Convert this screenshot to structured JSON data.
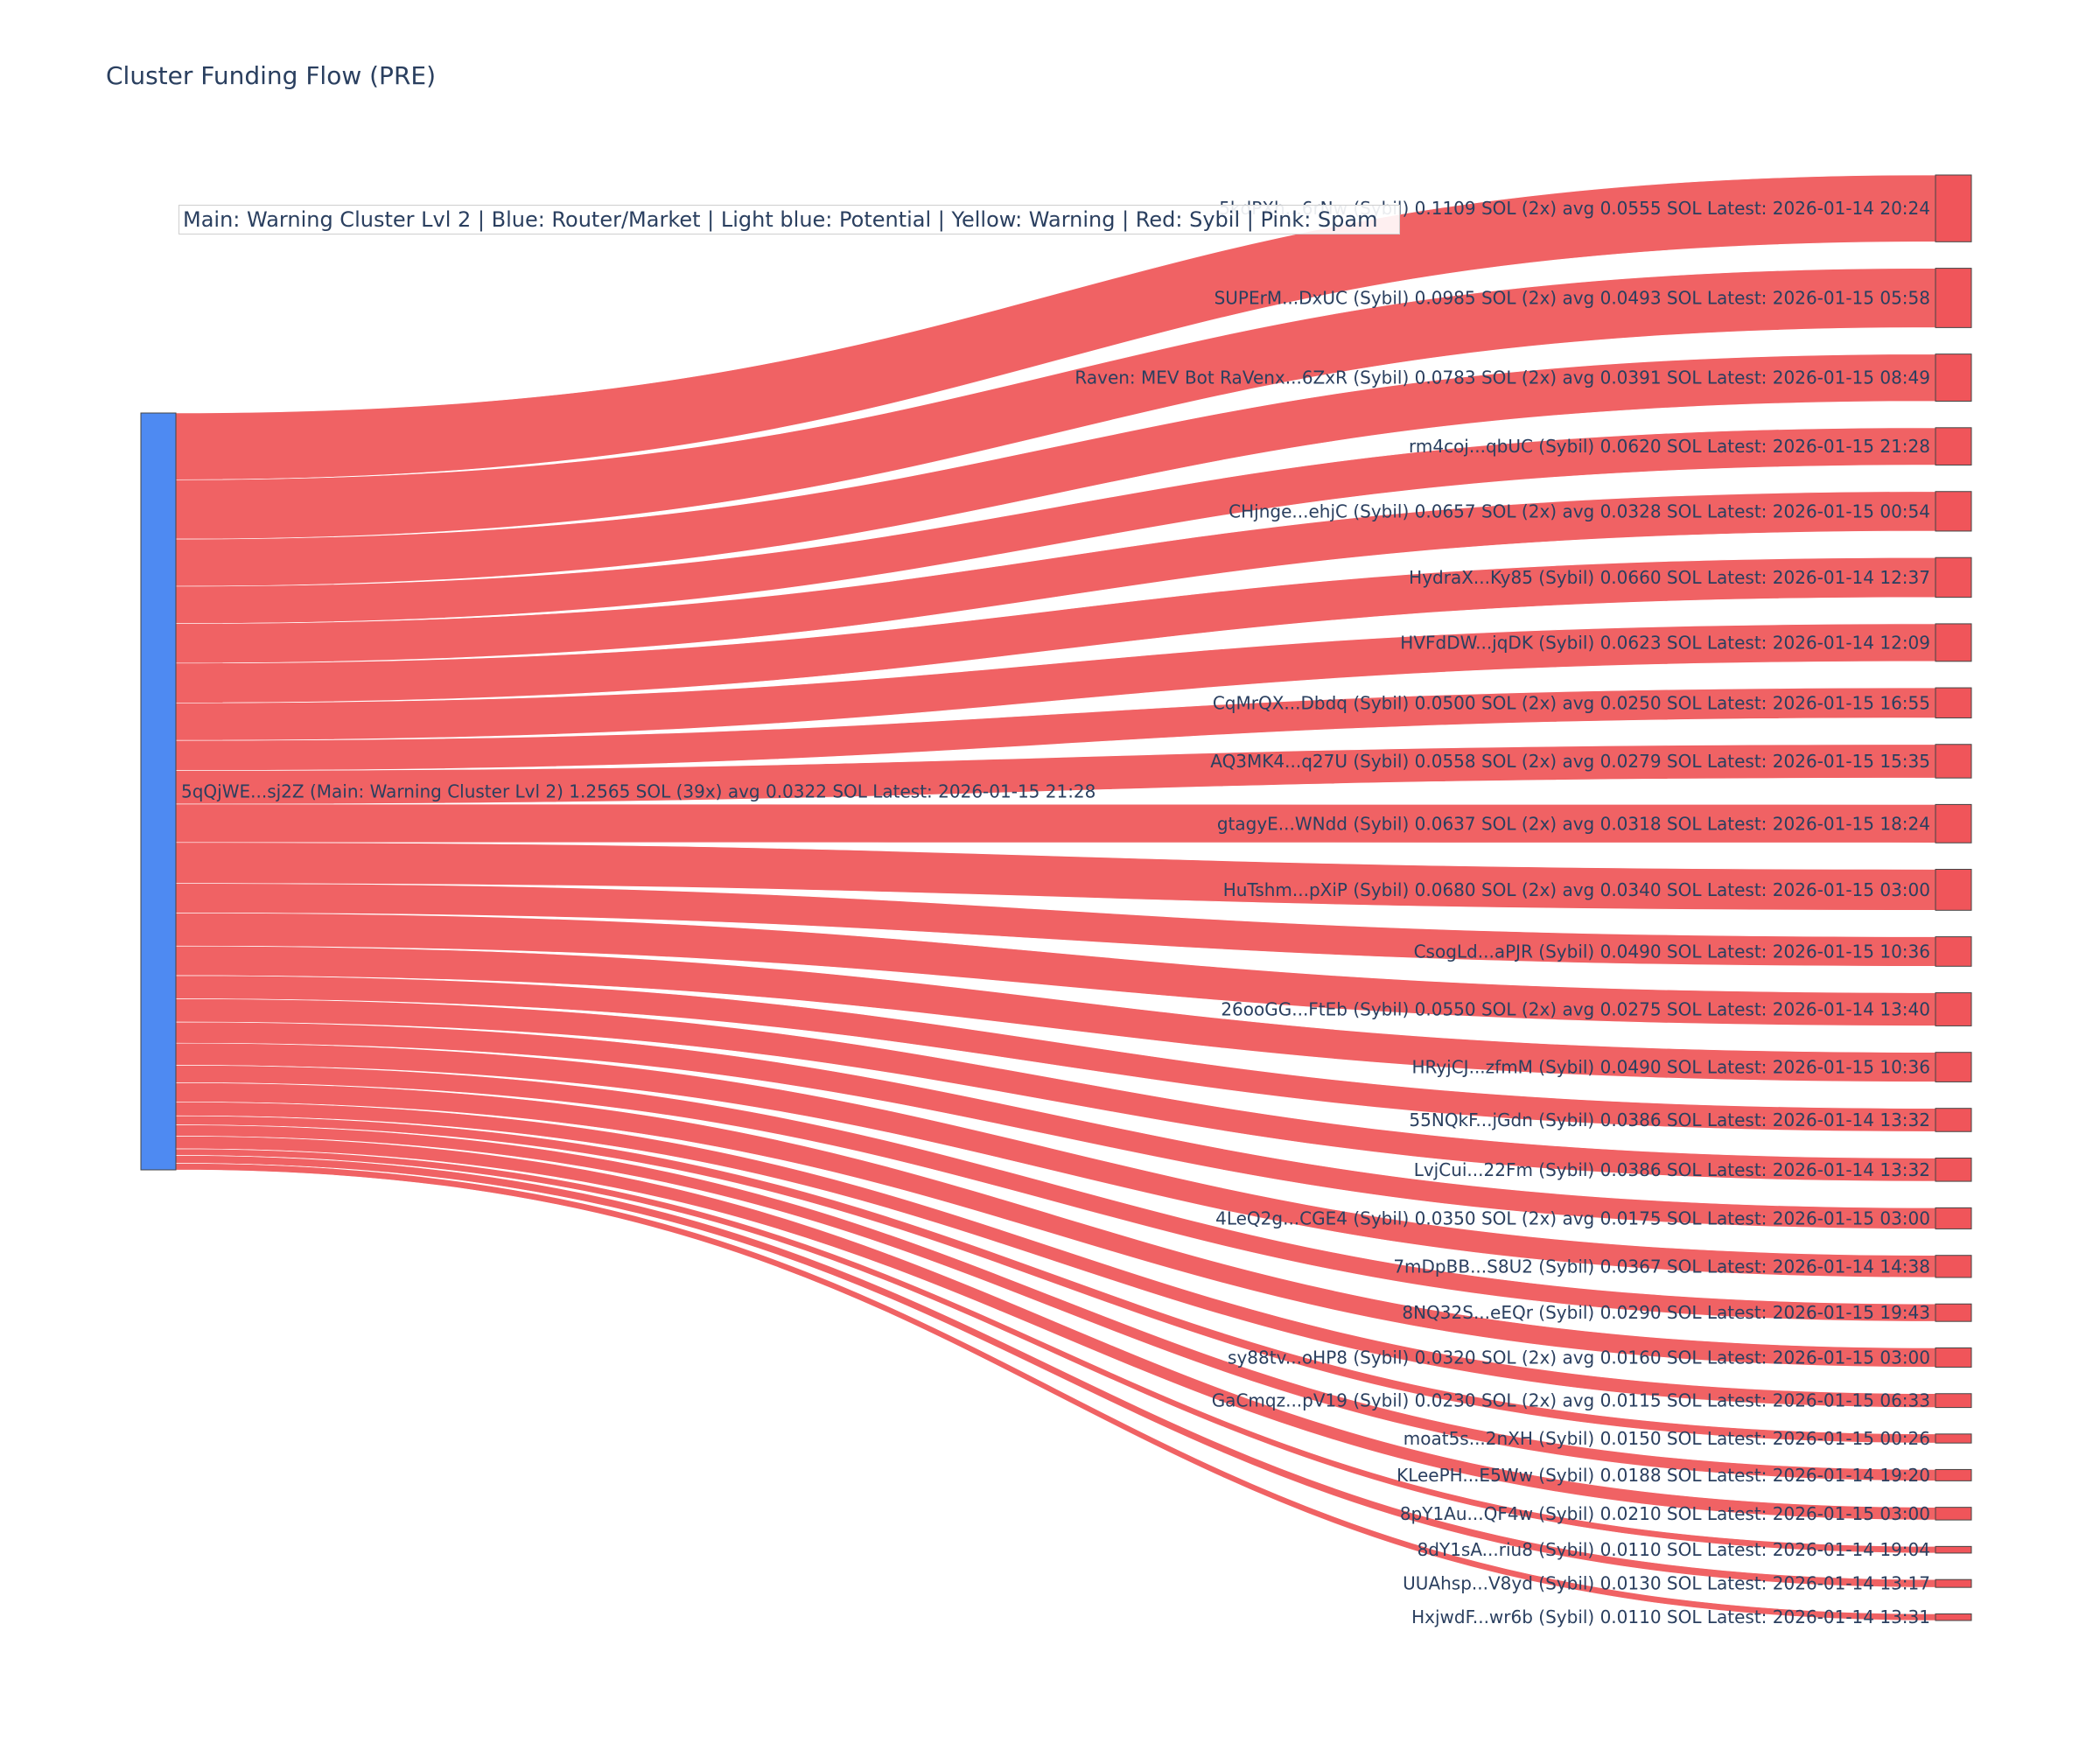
{
  "title": "Cluster Funding Flow (PRE)",
  "legend": "Main: Warning Cluster Lvl 2  |  Blue: Router/Market | Light blue: Potential | Yellow: Warning | Red: Sybil | Pink: Spam",
  "colors": {
    "source_node": "#4e8af2",
    "target_node": "#f0555a",
    "link": "#ef5557",
    "node_border": "#444444",
    "text": "#2a3f5f"
  },
  "chart_data": {
    "type": "sankey",
    "source": {
      "label": "5qQjWE...sj2Z (Main: Warning Cluster Lvl 2) 1.2565 SOL (39x) avg 0.0322 SOL Latest: 2026-01-15 21:28",
      "value": 1.2565
    },
    "targets": [
      {
        "label": "5kdPXh...6rNw (Sybil) 0.1109 SOL (2x) avg 0.0555 SOL Latest: 2026-01-14 20:24",
        "value": 0.1109
      },
      {
        "label": "SUPErM...DxUC (Sybil) 0.0985 SOL (2x) avg 0.0493 SOL Latest: 2026-01-15 05:58",
        "value": 0.0985
      },
      {
        "label": "Raven: MEV Bot RaVenx...6ZxR (Sybil) 0.0783 SOL (2x) avg 0.0391 SOL Latest: 2026-01-15 08:49",
        "value": 0.0783
      },
      {
        "label": "rm4coj...qbUC (Sybil) 0.0620 SOL Latest: 2026-01-15 21:28",
        "value": 0.062
      },
      {
        "label": "CHjnge...ehjC (Sybil) 0.0657 SOL (2x) avg 0.0328 SOL Latest: 2026-01-15 00:54",
        "value": 0.0657
      },
      {
        "label": "HydraX...Ky85 (Sybil) 0.0660 SOL Latest: 2026-01-14 12:37",
        "value": 0.066
      },
      {
        "label": "HVFdDW...jqDK (Sybil) 0.0623 SOL Latest: 2026-01-14 12:09",
        "value": 0.0623
      },
      {
        "label": "CqMrQX...Dbdq (Sybil) 0.0500 SOL (2x) avg 0.0250 SOL Latest: 2026-01-15 16:55",
        "value": 0.05
      },
      {
        "label": "AQ3MK4...q27U (Sybil) 0.0558 SOL (2x) avg 0.0279 SOL Latest: 2026-01-15 15:35",
        "value": 0.0558
      },
      {
        "label": "gtagyE...WNdd (Sybil) 0.0637 SOL (2x) avg 0.0318 SOL Latest: 2026-01-15 18:24",
        "value": 0.0637
      },
      {
        "label": "HuTshm...pXiP (Sybil) 0.0680 SOL (2x) avg 0.0340 SOL Latest: 2026-01-15 03:00",
        "value": 0.068
      },
      {
        "label": "CsogLd...aPJR (Sybil) 0.0490 SOL Latest: 2026-01-15 10:36",
        "value": 0.049
      },
      {
        "label": "26ooGG...FtEb (Sybil) 0.0550 SOL (2x) avg 0.0275 SOL Latest: 2026-01-14 13:40",
        "value": 0.055
      },
      {
        "label": "HRyjCJ...zfmM (Sybil) 0.0490 SOL Latest: 2026-01-15 10:36",
        "value": 0.049
      },
      {
        "label": "55NQkF...jGdn (Sybil) 0.0386 SOL Latest: 2026-01-14 13:32",
        "value": 0.0386
      },
      {
        "label": "LvjCui...22Fm (Sybil) 0.0386 SOL Latest: 2026-01-14 13:32",
        "value": 0.0386
      },
      {
        "label": "4LeQ2g...CGE4 (Sybil) 0.0350 SOL (2x) avg 0.0175 SOL Latest: 2026-01-15 03:00",
        "value": 0.035
      },
      {
        "label": "7mDpBB...S8U2 (Sybil) 0.0367 SOL Latest: 2026-01-14 14:38",
        "value": 0.0367
      },
      {
        "label": "8NQ32S...eEQr (Sybil) 0.0290 SOL Latest: 2026-01-15 19:43",
        "value": 0.029
      },
      {
        "label": "sy88tv...oHP8 (Sybil) 0.0320 SOL (2x) avg 0.0160 SOL Latest: 2026-01-15 03:00",
        "value": 0.032
      },
      {
        "label": "GaCmqz...pV19 (Sybil) 0.0230 SOL (2x) avg 0.0115 SOL Latest: 2026-01-15 06:33",
        "value": 0.023
      },
      {
        "label": "moat5s...2nXH (Sybil) 0.0150 SOL Latest: 2026-01-15 00:26",
        "value": 0.015
      },
      {
        "label": "KLeePH...E5Ww (Sybil) 0.0188 SOL Latest: 2026-01-14 19:20",
        "value": 0.0188
      },
      {
        "label": "8pY1Au...QF4w (Sybil) 0.0210 SOL Latest: 2026-01-15 03:00",
        "value": 0.021
      },
      {
        "label": "8dY1sA...riu8 (Sybil) 0.0110 SOL Latest: 2026-01-14 19:04",
        "value": 0.011
      },
      {
        "label": "UUAhsp...V8yd (Sybil) 0.0130 SOL Latest: 2026-01-14 13:17",
        "value": 0.013
      },
      {
        "label": "HxjwdF...wr6b (Sybil) 0.0110 SOL Latest: 2026-01-14 13:31",
        "value": 0.011
      }
    ]
  }
}
